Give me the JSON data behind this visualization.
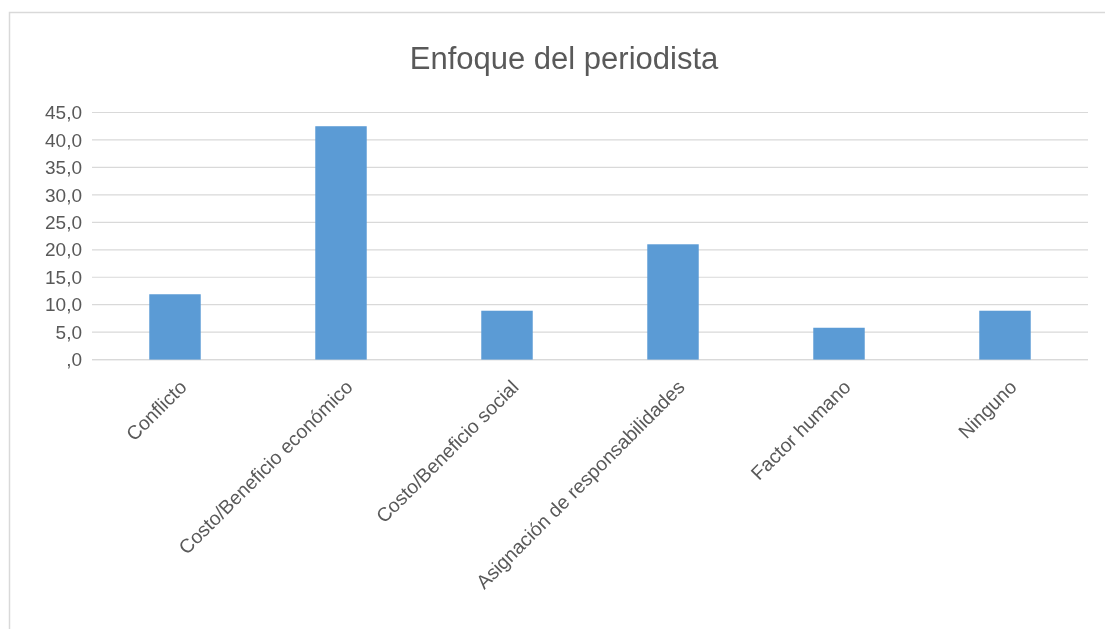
{
  "chart_data": {
    "type": "bar",
    "title": "Enfoque del periodista",
    "categories": [
      "Conflicto",
      "Costo/Beneficio económico",
      "Costo/Beneficio social",
      "Asignación de responsabilidades",
      "Factor humano",
      "Ninguno"
    ],
    "values": [
      11.9,
      42.5,
      8.9,
      21.0,
      5.8,
      8.9
    ],
    "color": "#5b9bd5",
    "ylim": [
      0,
      45
    ],
    "yticks": [
      {
        "value": 0,
        "label": ",0"
      },
      {
        "value": 5,
        "label": "5,0"
      },
      {
        "value": 10,
        "label": "10,0"
      },
      {
        "value": 15,
        "label": "15,0"
      },
      {
        "value": 20,
        "label": "20,0"
      },
      {
        "value": 25,
        "label": "25,0"
      },
      {
        "value": 30,
        "label": "30,0"
      },
      {
        "value": 35,
        "label": "35,0"
      },
      {
        "value": 40,
        "label": "40,0"
      },
      {
        "value": 45,
        "label": "45,0"
      }
    ],
    "grid": "y"
  }
}
